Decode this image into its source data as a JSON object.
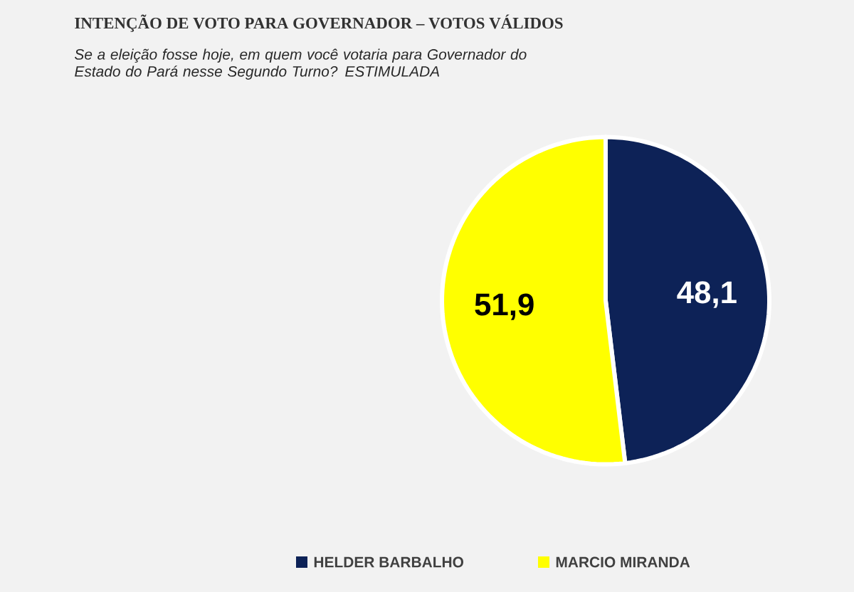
{
  "chart_data": {
    "type": "pie",
    "title": "INTENÇÃO DE VOTO PARA GOVERNADOR – VOTOS VÁLIDOS",
    "subtitle": "Se a eleição fosse hoje, em quem você votaria para Governador do Estado do Pará nesse Segundo Turno? ESTIMULADA",
    "categories": [
      "HELDER BARBALHO",
      "MARCIO MIRANDA"
    ],
    "values": [
      48.1,
      51.9
    ],
    "value_labels": [
      "48,1",
      "51,9"
    ],
    "colors": [
      "#0d2257",
      "#ffff00"
    ],
    "legend": "bottom"
  }
}
